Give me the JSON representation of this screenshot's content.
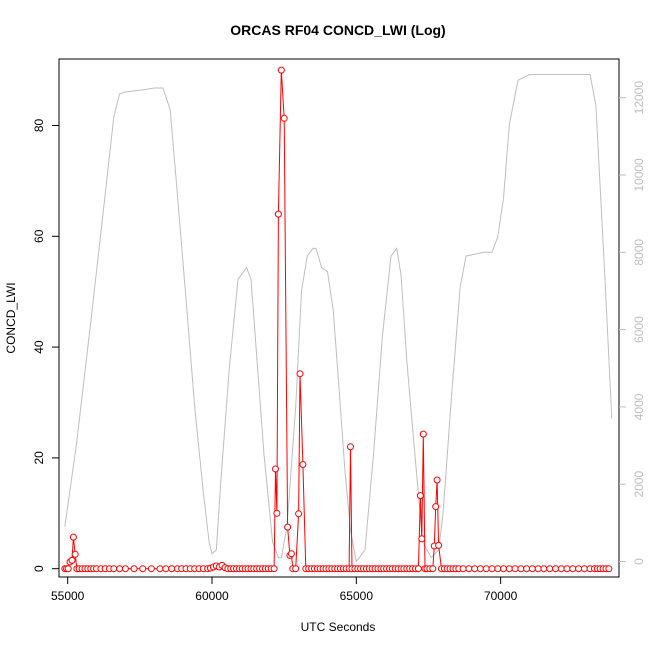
{
  "chart_data": {
    "type": "line",
    "title": "ORCAS RF04 CONCD_LWI (Log)",
    "xlabel": "UTC Seconds",
    "ylabel": "CONCD_LWI",
    "xlim": [
      54700,
      74100
    ],
    "ylim": [
      -1.5,
      92
    ],
    "y2lim": [
      -400,
      13000
    ],
    "x_ticks": [
      55000,
      60000,
      65000,
      70000
    ],
    "y_ticks": [
      0,
      20,
      40,
      60,
      80
    ],
    "y2_ticks": [
      0,
      2000,
      4000,
      6000,
      8000,
      10000,
      12000
    ],
    "colors": {
      "primary": "#ff0000",
      "secondary": "#bebebe"
    },
    "series": [
      {
        "axis": "left",
        "style": "line+points",
        "color": "#ff0000",
        "x": [
          54900,
          54960,
          55020,
          55080,
          55150,
          55200,
          55260,
          55320,
          55400,
          55500,
          55600,
          55700,
          55800,
          55900,
          56000,
          56150,
          56300,
          56450,
          56600,
          56800,
          57000,
          57300,
          57600,
          57900,
          58200,
          58400,
          58600,
          58800,
          58950,
          59100,
          59250,
          59400,
          59550,
          59700,
          59850,
          59950,
          60050,
          60150,
          60250,
          60350,
          60450,
          60550,
          60650,
          60750,
          60850,
          60950,
          61050,
          61150,
          61250,
          61350,
          61450,
          61550,
          61650,
          61750,
          61850,
          61950,
          62050,
          62150,
          62200,
          62250,
          62300,
          62400,
          62500,
          62620,
          62700,
          62750,
          62800,
          62900,
          63000,
          63050,
          63150,
          63250,
          63350,
          63450,
          63550,
          63650,
          63750,
          63850,
          63950,
          64050,
          64150,
          64250,
          64350,
          64450,
          64550,
          64650,
          64750,
          64800,
          64850,
          64950,
          65050,
          65150,
          65250,
          65350,
          65450,
          65550,
          65650,
          65750,
          65850,
          65950,
          66050,
          66150,
          66250,
          66350,
          66450,
          66550,
          66650,
          66750,
          66850,
          66950,
          67050,
          67150,
          67220,
          67270,
          67320,
          67380,
          67450,
          67550,
          67650,
          67700,
          67750,
          67800,
          67850,
          67950,
          68050,
          68150,
          68250,
          68350,
          68450,
          68550,
          68700,
          68900,
          69100,
          69300,
          69500,
          69700,
          69900,
          70100,
          70300,
          70500,
          70700,
          70900,
          71100,
          71300,
          71500,
          71700,
          71900,
          72100,
          72300,
          72500,
          72700,
          72900,
          73100,
          73250,
          73350,
          73450,
          73550,
          73650,
          73750
        ],
        "y": [
          0,
          0,
          0,
          1.2,
          1.5,
          5.7,
          2.6,
          0,
          0,
          0,
          0,
          0,
          0,
          0,
          0,
          0,
          0,
          0,
          0,
          0,
          0,
          0,
          0,
          0,
          0,
          0,
          0,
          0,
          0,
          0,
          0,
          0,
          0,
          0,
          0,
          0.1,
          0.3,
          0.5,
          0.3,
          0.6,
          0.2,
          0,
          0,
          0,
          0,
          0,
          0,
          0,
          0,
          0,
          0,
          0,
          0,
          0,
          0,
          0,
          0,
          0,
          18,
          10,
          64,
          90,
          81.3,
          7.5,
          2.4,
          2.7,
          0,
          0,
          9.9,
          35.2,
          18.8,
          0,
          0,
          0,
          0,
          0,
          0,
          0,
          0,
          0,
          0,
          0,
          0,
          0,
          0,
          0,
          0,
          22,
          0,
          0,
          0,
          0,
          0,
          0,
          0,
          0,
          0,
          0,
          0,
          0,
          0,
          0,
          0,
          0,
          0,
          0,
          0,
          0,
          0,
          0,
          0,
          0,
          13.2,
          5.4,
          24.3,
          0,
          0,
          0,
          0,
          4.1,
          11.2,
          16,
          4.2,
          0,
          0,
          0,
          0,
          0,
          0,
          0,
          0,
          0,
          0,
          0,
          0,
          0,
          0,
          0,
          0,
          0,
          0,
          0,
          0,
          0,
          0,
          0,
          0,
          0,
          0,
          0,
          0,
          0,
          0,
          0,
          0,
          0,
          0,
          0,
          0
        ]
      },
      {
        "axis": "right",
        "style": "line",
        "color": "#bebebe",
        "x": [
          54900,
          55300,
          55800,
          56300,
          56600,
          56800,
          57000,
          57600,
          58000,
          58300,
          58550,
          58800,
          59100,
          59400,
          59700,
          59900,
          60000,
          60150,
          60300,
          60600,
          60900,
          61200,
          61350,
          61500,
          61800,
          62100,
          62300,
          62400,
          62600,
          62900,
          63100,
          63300,
          63500,
          63600,
          63800,
          64000,
          64200,
          64400,
          64600,
          64800,
          65000,
          65300,
          65600,
          65900,
          66200,
          66400,
          66550,
          66750,
          67000,
          67300,
          67600,
          67850,
          68000,
          68300,
          68600,
          68800,
          69100,
          69400,
          69700,
          69900,
          70100,
          70300,
          70600,
          71000,
          71500,
          72000,
          72800,
          73100,
          73300,
          73600,
          73850
        ],
        "y": [
          900,
          3000,
          6200,
          9500,
          11500,
          12100,
          12150,
          12200,
          12250,
          12250,
          11700,
          9500,
          6800,
          4000,
          1800,
          500,
          200,
          300,
          2000,
          5000,
          7300,
          7600,
          7300,
          5800,
          2800,
          500,
          100,
          100,
          900,
          4000,
          7000,
          7900,
          8100,
          8100,
          7600,
          7500,
          6500,
          4500,
          2400,
          800,
          0,
          300,
          2800,
          5800,
          7900,
          8100,
          7400,
          5200,
          3000,
          500,
          100,
          300,
          1200,
          4300,
          7100,
          7900,
          7950,
          8000,
          8000,
          8400,
          9400,
          11300,
          12450,
          12600,
          12600,
          12600,
          12600,
          12600,
          11800,
          7500,
          3700
        ]
      }
    ]
  }
}
